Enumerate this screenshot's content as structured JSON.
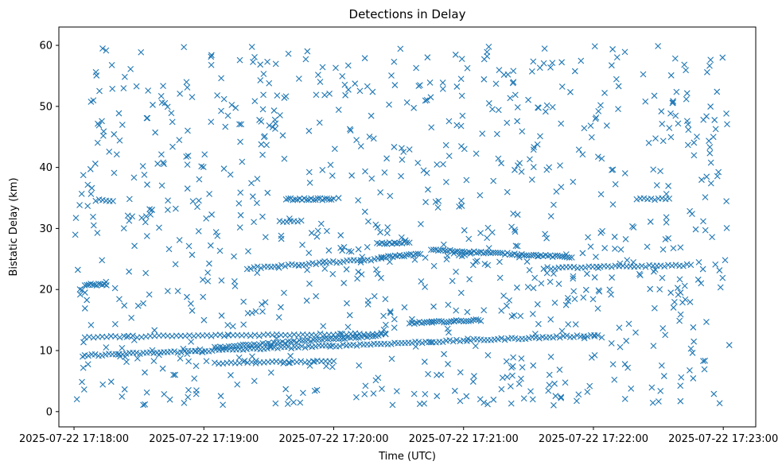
{
  "chart_data": {
    "type": "scatter",
    "title": "Detections in Delay",
    "xlabel": "Time (UTC)",
    "ylabel": "Bistatic Delay (km)",
    "x_range": [
      "2025-07-22 17:17:53",
      "2025-07-22 17:23:15"
    ],
    "ylim": [
      -2.5,
      63
    ],
    "x_ticks": [
      "2025-07-22 17:18:00",
      "2025-07-22 17:19:00",
      "2025-07-22 17:20:00",
      "2025-07-22 17:21:00",
      "2025-07-22 17:22:00",
      "2025-07-22 17:23:00"
    ],
    "y_ticks": [
      0,
      10,
      20,
      30,
      40,
      50,
      60
    ],
    "marker": "x",
    "marker_color": "#1f77b4",
    "grid": false,
    "legend": "none",
    "tracks": [
      {
        "start": "2025-07-22 17:18:05",
        "end": "2025-07-22 17:22:02",
        "y_start": 9.2,
        "y_end": 12.5,
        "count": 150
      },
      {
        "start": "2025-07-22 17:18:05",
        "end": "2025-07-22 17:20:24",
        "y_start": 12.2,
        "y_end": 12.8,
        "count": 70
      },
      {
        "start": "2025-07-22 17:19:05",
        "end": "2025-07-22 17:20:22",
        "y_start": 10.5,
        "y_end": 12.5,
        "count": 60
      },
      {
        "start": "2025-07-22 17:19:05",
        "end": "2025-07-22 17:20:00",
        "y_start": 8.0,
        "y_end": 8.2,
        "count": 30
      },
      {
        "start": "2025-07-22 17:20:35",
        "end": "2025-07-22 17:21:08",
        "y_start": 14.5,
        "y_end": 15.0,
        "count": 30
      },
      {
        "start": "2025-07-22 17:18:05",
        "end": "2025-07-22 17:18:15",
        "y_start": 20.8,
        "y_end": 20.8,
        "count": 12
      },
      {
        "start": "2025-07-22 17:19:20",
        "end": "2025-07-22 17:20:22",
        "y_start": 23.5,
        "y_end": 25.0,
        "count": 40
      },
      {
        "start": "2025-07-22 17:20:22",
        "end": "2025-07-22 17:20:40",
        "y_start": 25.3,
        "y_end": 25.8,
        "count": 18
      },
      {
        "start": "2025-07-22 17:20:20",
        "end": "2025-07-22 17:20:35",
        "y_start": 27.5,
        "y_end": 27.7,
        "count": 14
      },
      {
        "start": "2025-07-22 17:20:45",
        "end": "2025-07-22 17:21:50",
        "y_start": 26.5,
        "y_end": 25.3,
        "count": 60
      },
      {
        "start": "2025-07-22 17:21:37",
        "end": "2025-07-22 17:22:45",
        "y_start": 23.5,
        "y_end": 24.0,
        "count": 40
      },
      {
        "start": "2025-07-22 17:19:38",
        "end": "2025-07-22 17:20:00",
        "y_start": 34.8,
        "y_end": 34.8,
        "count": 22
      },
      {
        "start": "2025-07-22 17:18:10",
        "end": "2025-07-22 17:18:18",
        "y_start": 34.6,
        "y_end": 34.6,
        "count": 6
      },
      {
        "start": "2025-07-22 17:22:20",
        "end": "2025-07-22 17:22:35",
        "y_start": 34.8,
        "y_end": 34.8,
        "count": 10
      },
      {
        "start": "2025-07-22 17:19:35",
        "end": "2025-07-22 17:19:45",
        "y_start": 31.2,
        "y_end": 31.2,
        "count": 7
      }
    ],
    "scatter_points": {
      "count": 900,
      "x_start": "2025-07-22 17:18:00",
      "x_end": "2025-07-22 17:23:03",
      "y_min": 1,
      "y_max": 60
    }
  }
}
